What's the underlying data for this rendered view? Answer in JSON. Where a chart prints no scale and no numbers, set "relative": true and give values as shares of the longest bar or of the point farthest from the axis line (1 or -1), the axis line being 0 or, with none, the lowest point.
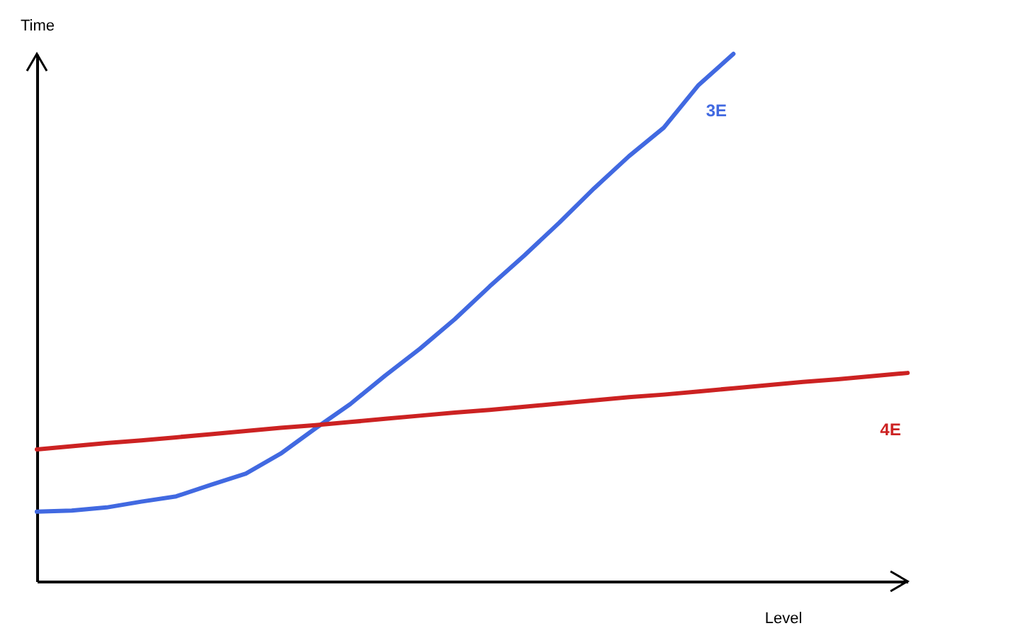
{
  "chart_data": {
    "type": "line",
    "relative": true,
    "xlabel": "Level",
    "ylabel": "Time",
    "legend": false,
    "grid": false,
    "categories": [
      null,
      null,
      null,
      null,
      null,
      null,
      null,
      null,
      null,
      null,
      null,
      null,
      null,
      null,
      null,
      null,
      null,
      null,
      null,
      null,
      null,
      null,
      null,
      null,
      null,
      null
    ],
    "series": [
      {
        "name": "3E",
        "color": "#4169e1",
        "values": [
          0.132,
          0.134,
          0.14,
          0.151,
          0.161,
          0.183,
          0.204,
          0.242,
          0.29,
          0.336,
          0.39,
          0.441,
          0.497,
          0.559,
          0.618,
          0.68,
          0.745,
          0.806,
          0.86,
          0.941,
          1,
          null,
          null,
          null,
          null,
          null
        ]
      },
      {
        "name": "4E",
        "color": "#cc2222",
        "values": [
          0.25,
          0.256,
          0.262,
          0.267,
          0.273,
          0.279,
          0.285,
          0.291,
          0.296,
          0.302,
          0.308,
          0.314,
          0.32,
          0.325,
          0.331,
          0.337,
          0.343,
          0.349,
          0.354,
          0.36,
          0.366,
          0.372,
          0.378,
          0.383,
          0.389,
          0.395
        ]
      }
    ]
  }
}
